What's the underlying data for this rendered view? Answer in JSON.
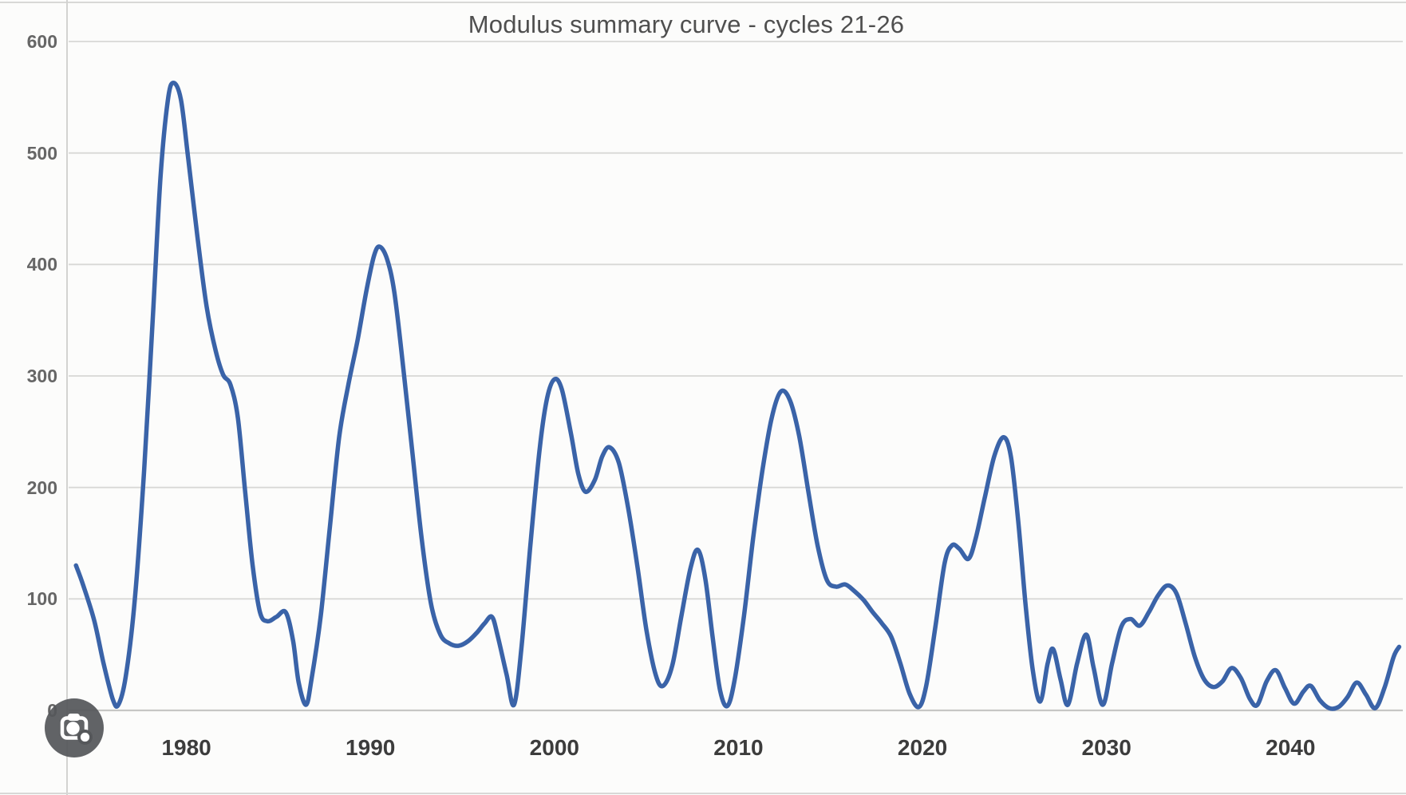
{
  "page": {
    "background": "#fcfcfb"
  },
  "lens_button": {
    "tooltip": "Search inside image",
    "icon": "google-lens-camera",
    "circle_color": "#55575a",
    "glyph_color": "#ffffff"
  },
  "chart_data": {
    "type": "line",
    "title": "Modulus summary curve - cycles 21-26",
    "xlabel": "",
    "ylabel": "",
    "x_ticks": [
      1980,
      1990,
      2000,
      2010,
      2020,
      2030,
      2040
    ],
    "y_ticks": [
      0,
      100,
      200,
      300,
      400,
      500,
      600
    ],
    "xlim": [
      1973.6,
      2046.1
    ],
    "ylim": [
      0,
      600
    ],
    "grid": true,
    "legend_position": "none",
    "gridline_color": "#d8d8d6",
    "axis_line_color": "#c6c6c4",
    "tick_label_color_y": "#666666",
    "tick_label_color_x": "#3c3c3c",
    "title_color": "#4f4f4f",
    "series": [
      {
        "name": "Modulus summary",
        "color": "#3a63a8",
        "stroke_width": 5.5,
        "smoothed": true,
        "points": [
          [
            1974.0,
            130
          ],
          [
            1974.4,
            112
          ],
          [
            1975.0,
            80
          ],
          [
            1975.5,
            42
          ],
          [
            1976.0,
            10
          ],
          [
            1976.3,
            5
          ],
          [
            1976.7,
            30
          ],
          [
            1977.2,
            100
          ],
          [
            1977.7,
            215
          ],
          [
            1978.2,
            360
          ],
          [
            1978.6,
            480
          ],
          [
            1979.0,
            548
          ],
          [
            1979.3,
            563
          ],
          [
            1979.7,
            548
          ],
          [
            1980.1,
            495
          ],
          [
            1980.6,
            425
          ],
          [
            1981.1,
            362
          ],
          [
            1981.6,
            322
          ],
          [
            1982.0,
            301
          ],
          [
            1982.4,
            292
          ],
          [
            1982.8,
            262
          ],
          [
            1983.2,
            195
          ],
          [
            1983.6,
            130
          ],
          [
            1984.0,
            88
          ],
          [
            1984.4,
            80
          ],
          [
            1984.9,
            84
          ],
          [
            1985.4,
            88
          ],
          [
            1985.8,
            62
          ],
          [
            1986.1,
            25
          ],
          [
            1986.5,
            5
          ],
          [
            1986.8,
            28
          ],
          [
            1987.3,
            85
          ],
          [
            1987.8,
            165
          ],
          [
            1988.3,
            245
          ],
          [
            1988.8,
            292
          ],
          [
            1989.3,
            332
          ],
          [
            1989.8,
            378
          ],
          [
            1990.2,
            408
          ],
          [
            1990.5,
            416
          ],
          [
            1990.9,
            405
          ],
          [
            1991.3,
            375
          ],
          [
            1991.8,
            305
          ],
          [
            1992.3,
            228
          ],
          [
            1992.8,
            152
          ],
          [
            1993.3,
            95
          ],
          [
            1993.8,
            68
          ],
          [
            1994.3,
            60
          ],
          [
            1994.8,
            58
          ],
          [
            1995.3,
            62
          ],
          [
            1995.8,
            70
          ],
          [
            1996.2,
            78
          ],
          [
            1996.6,
            84
          ],
          [
            1996.9,
            68
          ],
          [
            1997.4,
            32
          ],
          [
            1997.8,
            5
          ],
          [
            1998.2,
            55
          ],
          [
            1998.7,
            150
          ],
          [
            1999.2,
            235
          ],
          [
            1999.6,
            280
          ],
          [
            2000.0,
            297
          ],
          [
            2000.4,
            288
          ],
          [
            2000.9,
            248
          ],
          [
            2001.3,
            212
          ],
          [
            2001.7,
            196
          ],
          [
            2002.2,
            207
          ],
          [
            2002.6,
            228
          ],
          [
            2003.0,
            236
          ],
          [
            2003.5,
            222
          ],
          [
            2004.0,
            182
          ],
          [
            2004.5,
            130
          ],
          [
            2005.0,
            72
          ],
          [
            2005.5,
            32
          ],
          [
            2005.9,
            22
          ],
          [
            2006.4,
            40
          ],
          [
            2006.9,
            85
          ],
          [
            2007.4,
            128
          ],
          [
            2007.8,
            144
          ],
          [
            2008.2,
            118
          ],
          [
            2008.6,
            65
          ],
          [
            2009.0,
            18
          ],
          [
            2009.4,
            4
          ],
          [
            2009.8,
            28
          ],
          [
            2010.3,
            85
          ],
          [
            2010.8,
            155
          ],
          [
            2011.3,
            215
          ],
          [
            2011.8,
            262
          ],
          [
            2012.3,
            286
          ],
          [
            2012.8,
            278
          ],
          [
            2013.3,
            246
          ],
          [
            2013.8,
            196
          ],
          [
            2014.3,
            148
          ],
          [
            2014.8,
            117
          ],
          [
            2015.3,
            111
          ],
          [
            2015.8,
            113
          ],
          [
            2016.3,
            107
          ],
          [
            2016.8,
            99
          ],
          [
            2017.3,
            88
          ],
          [
            2017.8,
            78
          ],
          [
            2018.3,
            66
          ],
          [
            2018.8,
            42
          ],
          [
            2019.3,
            15
          ],
          [
            2019.8,
            3
          ],
          [
            2020.2,
            22
          ],
          [
            2020.7,
            75
          ],
          [
            2021.2,
            132
          ],
          [
            2021.6,
            148
          ],
          [
            2022.0,
            145
          ],
          [
            2022.5,
            136
          ],
          [
            2022.9,
            155
          ],
          [
            2023.4,
            192
          ],
          [
            2023.9,
            228
          ],
          [
            2024.4,
            245
          ],
          [
            2024.8,
            228
          ],
          [
            2025.2,
            170
          ],
          [
            2025.6,
            95
          ],
          [
            2026.0,
            35
          ],
          [
            2026.4,
            8
          ],
          [
            2026.8,
            42
          ],
          [
            2027.1,
            55
          ],
          [
            2027.5,
            28
          ],
          [
            2027.9,
            5
          ],
          [
            2028.4,
            42
          ],
          [
            2028.9,
            68
          ],
          [
            2029.3,
            38
          ],
          [
            2029.8,
            5
          ],
          [
            2030.3,
            42
          ],
          [
            2030.8,
            75
          ],
          [
            2031.3,
            82
          ],
          [
            2031.8,
            76
          ],
          [
            2032.3,
            88
          ],
          [
            2032.8,
            103
          ],
          [
            2033.3,
            112
          ],
          [
            2033.8,
            105
          ],
          [
            2034.3,
            78
          ],
          [
            2034.8,
            48
          ],
          [
            2035.3,
            28
          ],
          [
            2035.8,
            21
          ],
          [
            2036.3,
            26
          ],
          [
            2036.8,
            38
          ],
          [
            2037.3,
            29
          ],
          [
            2037.8,
            10
          ],
          [
            2038.2,
            5
          ],
          [
            2038.7,
            26
          ],
          [
            2039.2,
            36
          ],
          [
            2039.7,
            20
          ],
          [
            2040.2,
            6
          ],
          [
            2040.7,
            17
          ],
          [
            2041.1,
            22
          ],
          [
            2041.6,
            9
          ],
          [
            2042.1,
            2
          ],
          [
            2042.6,
            3
          ],
          [
            2043.1,
            12
          ],
          [
            2043.6,
            25
          ],
          [
            2044.1,
            14
          ],
          [
            2044.6,
            2
          ],
          [
            2045.1,
            20
          ],
          [
            2045.6,
            48
          ],
          [
            2045.9,
            57
          ]
        ]
      }
    ]
  }
}
